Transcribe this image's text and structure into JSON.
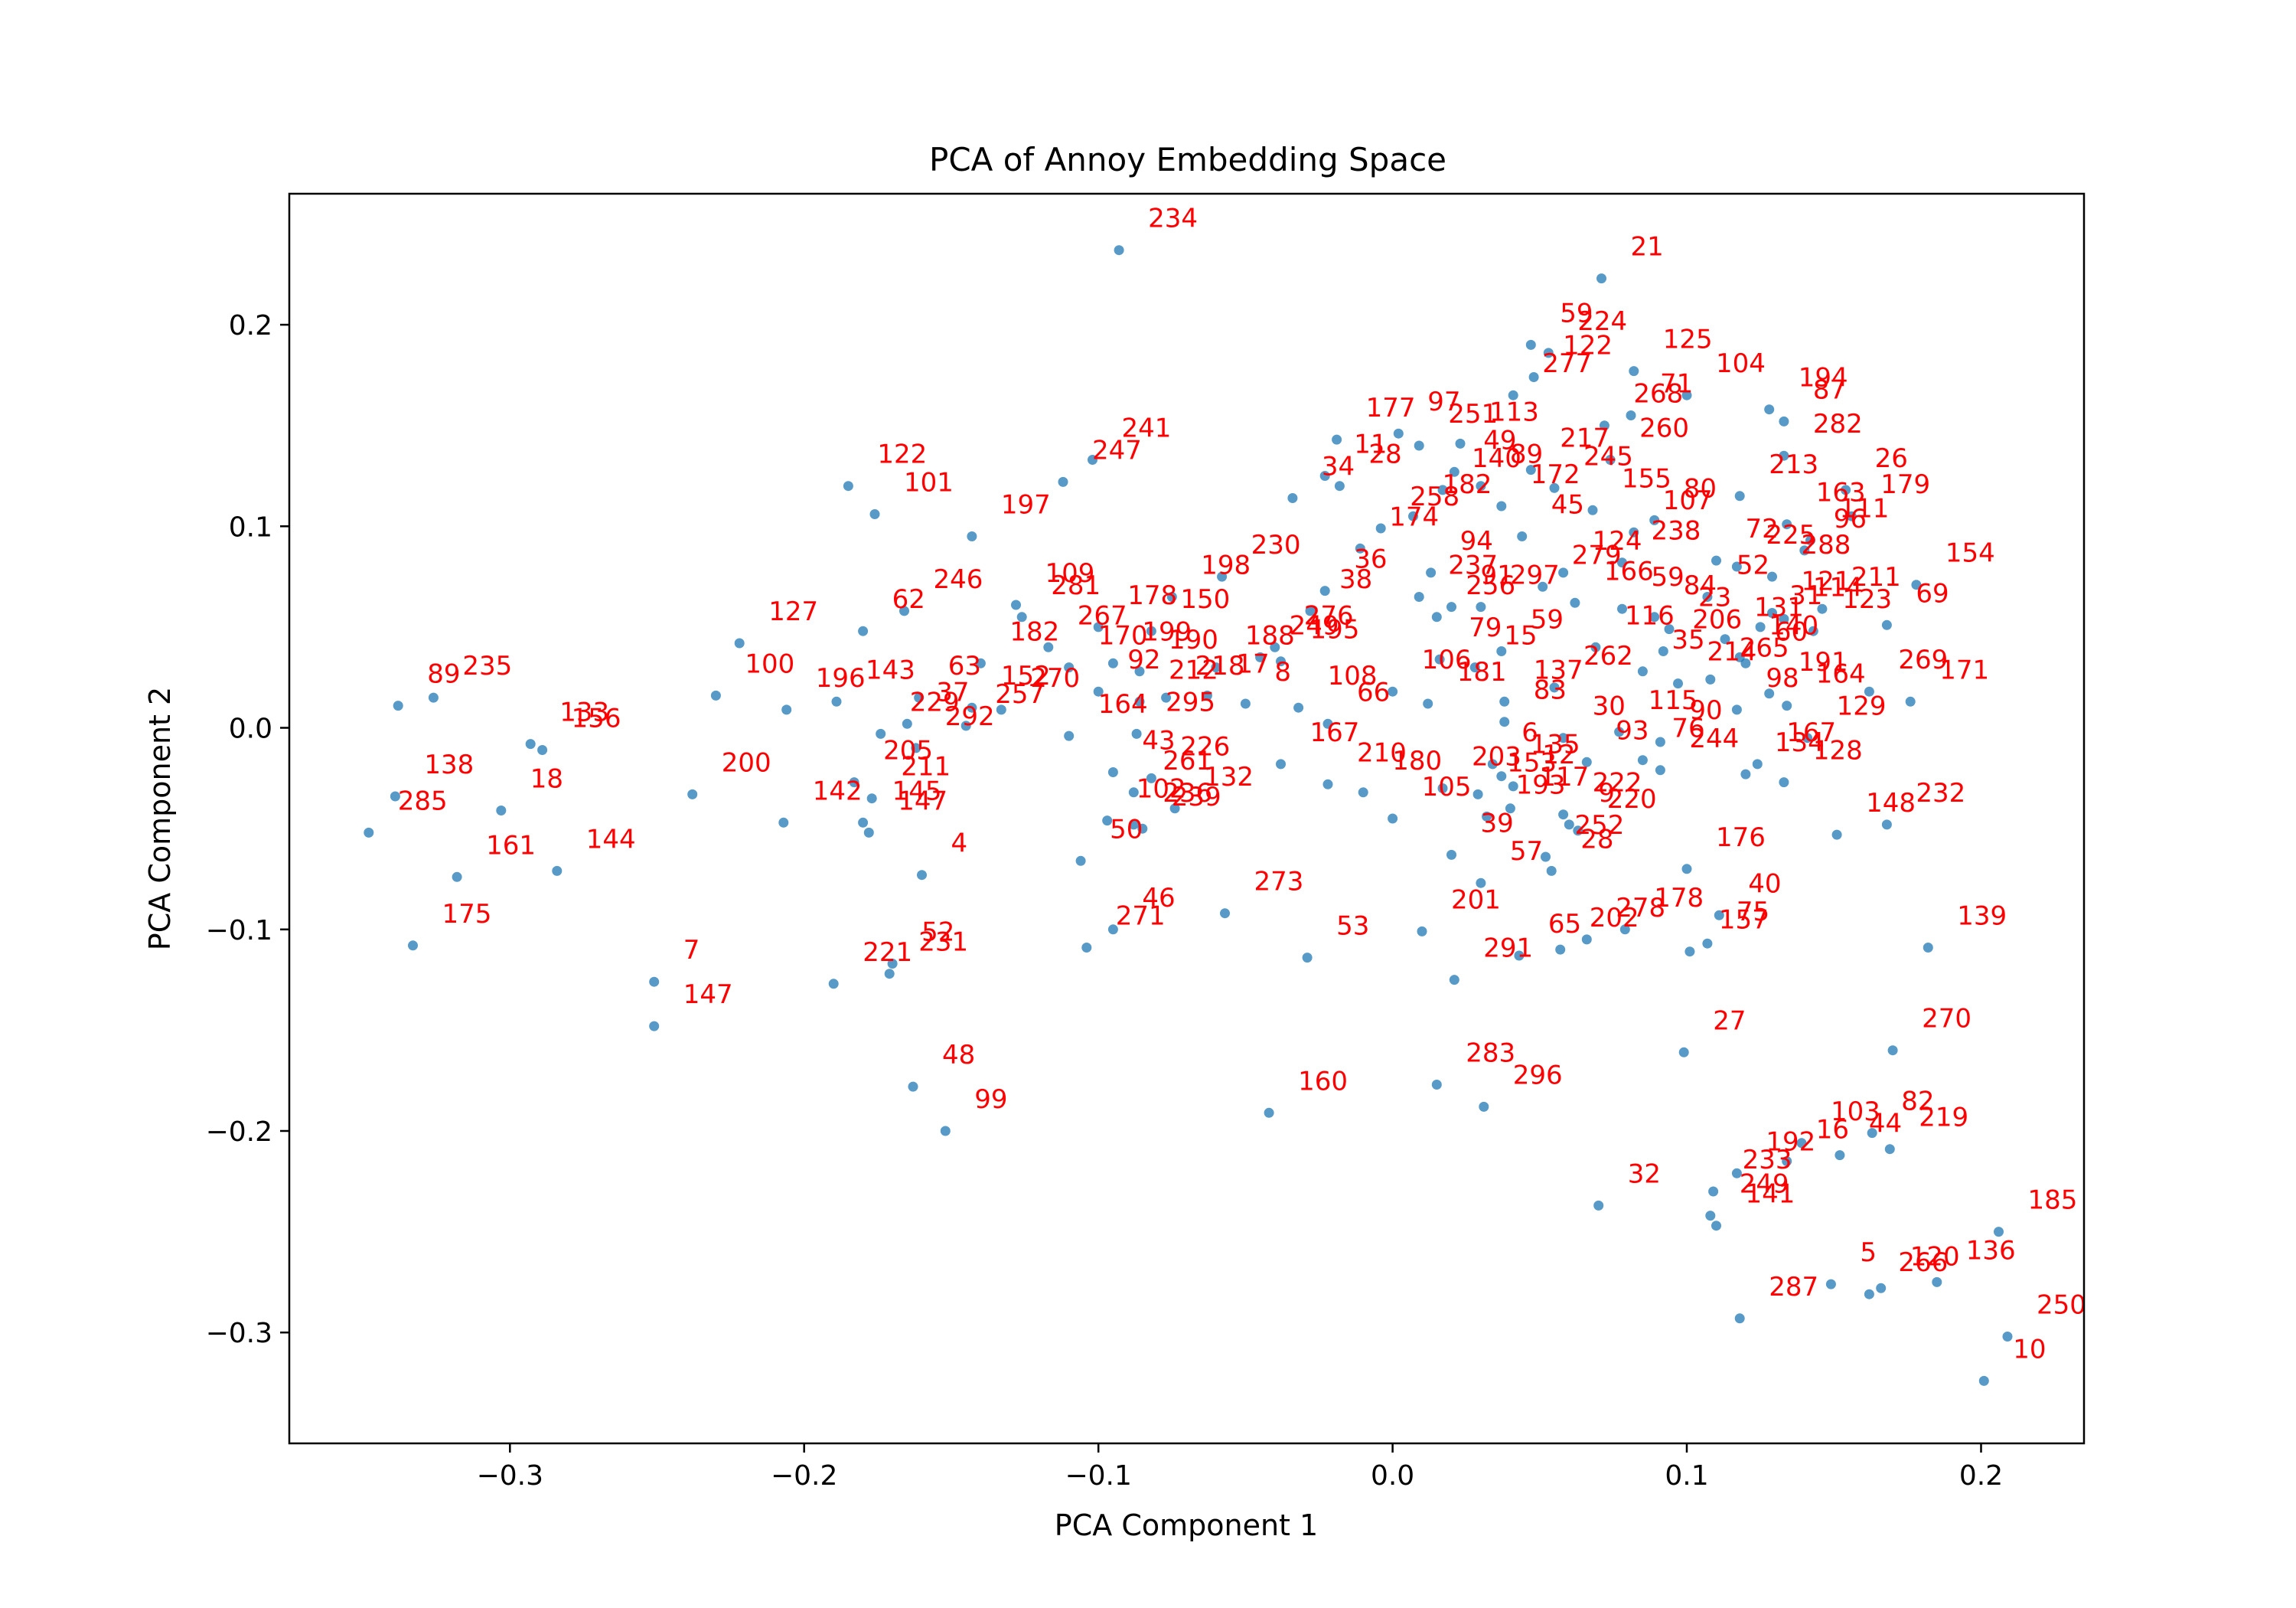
{
  "colors": {
    "points": "#1f77b4",
    "labels": "#ff0000",
    "axes": "#000000",
    "background": "#ffffff"
  },
  "chart_data": {
    "type": "scatter",
    "title": "PCA of Annoy Embedding Space",
    "xlabel": "PCA Component 1",
    "ylabel": "PCA Component 2",
    "xlim": [
      -0.375,
      0.235
    ],
    "ylim": [
      -0.355,
      0.265
    ],
    "xticks": [
      {
        "value": -0.3,
        "label": "−0.3"
      },
      {
        "value": -0.2,
        "label": "−0.2"
      },
      {
        "value": -0.1,
        "label": "−0.1"
      },
      {
        "value": 0.0,
        "label": "0.0"
      },
      {
        "value": 0.1,
        "label": "0.1"
      },
      {
        "value": 0.2,
        "label": "0.2"
      }
    ],
    "yticks": [
      {
        "value": 0.2,
        "label": "0.2"
      },
      {
        "value": 0.1,
        "label": "0.1"
      },
      {
        "value": 0.0,
        "label": "0.0"
      },
      {
        "value": -0.1,
        "label": "−0.1"
      },
      {
        "value": -0.2,
        "label": "−0.2"
      },
      {
        "value": -0.3,
        "label": "−0.3"
      }
    ],
    "grid": false,
    "legend": false,
    "points": [
      {
        "label": "234",
        "x": -0.093,
        "y": 0.237
      },
      {
        "label": "21",
        "x": 0.071,
        "y": 0.223
      },
      {
        "label": "224",
        "x": 0.053,
        "y": 0.186
      },
      {
        "label": "59",
        "x": 0.047,
        "y": 0.19
      },
      {
        "label": "125",
        "x": 0.082,
        "y": 0.177
      },
      {
        "label": "104",
        "x": 0.1,
        "y": 0.165
      },
      {
        "label": "194",
        "x": 0.128,
        "y": 0.158
      },
      {
        "label": "87",
        "x": 0.133,
        "y": 0.152
      },
      {
        "label": "282",
        "x": 0.133,
        "y": 0.135
      },
      {
        "label": "71",
        "x": 0.081,
        "y": 0.155
      },
      {
        "label": "268",
        "x": 0.072,
        "y": 0.15
      },
      {
        "label": "97",
        "x": 0.002,
        "y": 0.146
      },
      {
        "label": "251",
        "x": 0.009,
        "y": 0.14
      },
      {
        "label": "177",
        "x": -0.019,
        "y": 0.143
      },
      {
        "label": "113",
        "x": 0.023,
        "y": 0.141
      },
      {
        "label": "277",
        "x": 0.041,
        "y": 0.165
      },
      {
        "label": "122",
        "x": 0.048,
        "y": 0.174
      },
      {
        "label": "241",
        "x": -0.102,
        "y": 0.133
      },
      {
        "label": "247",
        "x": -0.112,
        "y": 0.122
      },
      {
        "label": "122",
        "x": -0.185,
        "y": 0.12
      },
      {
        "label": "101",
        "x": -0.176,
        "y": 0.106
      },
      {
        "label": "197",
        "x": -0.143,
        "y": 0.095
      },
      {
        "label": "11",
        "x": -0.023,
        "y": 0.125
      },
      {
        "label": "28",
        "x": -0.018,
        "y": 0.12
      },
      {
        "label": "34",
        "x": -0.034,
        "y": 0.114
      },
      {
        "label": "49",
        "x": 0.021,
        "y": 0.127
      },
      {
        "label": "140",
        "x": 0.017,
        "y": 0.118
      },
      {
        "label": "89",
        "x": 0.03,
        "y": 0.12
      },
      {
        "label": "217",
        "x": 0.047,
        "y": 0.128
      },
      {
        "label": "245",
        "x": 0.055,
        "y": 0.119
      },
      {
        "label": "260",
        "x": 0.074,
        "y": 0.133
      },
      {
        "label": "213",
        "x": 0.118,
        "y": 0.115
      },
      {
        "label": "26",
        "x": 0.154,
        "y": 0.118
      },
      {
        "label": "179",
        "x": 0.156,
        "y": 0.105
      },
      {
        "label": "163",
        "x": 0.134,
        "y": 0.101
      },
      {
        "label": "155",
        "x": 0.068,
        "y": 0.108
      },
      {
        "label": "80",
        "x": 0.089,
        "y": 0.103
      },
      {
        "label": "107",
        "x": 0.082,
        "y": 0.097
      },
      {
        "label": "172",
        "x": 0.037,
        "y": 0.11
      },
      {
        "label": "182",
        "x": 0.007,
        "y": 0.105
      },
      {
        "label": "258",
        "x": -0.004,
        "y": 0.099
      },
      {
        "label": "45",
        "x": 0.044,
        "y": 0.095
      },
      {
        "label": "174",
        "x": -0.011,
        "y": 0.089
      },
      {
        "label": "111",
        "x": 0.142,
        "y": 0.093
      },
      {
        "label": "96",
        "x": 0.14,
        "y": 0.088
      },
      {
        "label": "154",
        "x": 0.178,
        "y": 0.071
      },
      {
        "label": "230",
        "x": -0.058,
        "y": 0.075
      },
      {
        "label": "94",
        "x": 0.013,
        "y": 0.077
      },
      {
        "label": "36",
        "x": -0.023,
        "y": 0.068
      },
      {
        "label": "38",
        "x": -0.028,
        "y": 0.058
      },
      {
        "label": "237",
        "x": 0.009,
        "y": 0.065
      },
      {
        "label": "91",
        "x": 0.02,
        "y": 0.06
      },
      {
        "label": "279",
        "x": 0.051,
        "y": 0.07
      },
      {
        "label": "124",
        "x": 0.058,
        "y": 0.077
      },
      {
        "label": "238",
        "x": 0.078,
        "y": 0.082
      },
      {
        "label": "211",
        "x": 0.146,
        "y": 0.059
      },
      {
        "label": "69",
        "x": 0.168,
        "y": 0.051
      },
      {
        "label": "246",
        "x": -0.166,
        "y": 0.058
      },
      {
        "label": "62",
        "x": -0.18,
        "y": 0.048
      },
      {
        "label": "109",
        "x": -0.128,
        "y": 0.061
      },
      {
        "label": "281",
        "x": -0.126,
        "y": 0.055
      },
      {
        "label": "178",
        "x": -0.1,
        "y": 0.05
      },
      {
        "label": "150",
        "x": -0.082,
        "y": 0.048
      },
      {
        "label": "198",
        "x": -0.075,
        "y": 0.065
      },
      {
        "label": "267",
        "x": -0.117,
        "y": 0.04
      },
      {
        "label": "256",
        "x": 0.015,
        "y": 0.055
      },
      {
        "label": "297",
        "x": 0.03,
        "y": 0.06
      },
      {
        "label": "166",
        "x": 0.062,
        "y": 0.062
      },
      {
        "label": "59",
        "x": 0.078,
        "y": 0.059
      },
      {
        "label": "276",
        "x": -0.04,
        "y": 0.04
      },
      {
        "label": "116",
        "x": 0.069,
        "y": 0.04
      },
      {
        "label": "206",
        "x": 0.092,
        "y": 0.038
      },
      {
        "label": "123",
        "x": 0.143,
        "y": 0.048
      },
      {
        "label": "127",
        "x": -0.222,
        "y": 0.042
      },
      {
        "label": "182",
        "x": -0.14,
        "y": 0.032
      },
      {
        "label": "170",
        "x": -0.11,
        "y": 0.03
      },
      {
        "label": "199",
        "x": -0.095,
        "y": 0.032
      },
      {
        "label": "190",
        "x": -0.086,
        "y": 0.028
      },
      {
        "label": "188",
        "x": -0.06,
        "y": 0.03
      },
      {
        "label": "249",
        "x": -0.045,
        "y": 0.035
      },
      {
        "label": "195",
        "x": -0.038,
        "y": 0.033
      },
      {
        "label": "79",
        "x": 0.016,
        "y": 0.034
      },
      {
        "label": "15",
        "x": 0.028,
        "y": 0.03
      },
      {
        "label": "59",
        "x": 0.037,
        "y": 0.038
      },
      {
        "label": "60",
        "x": 0.12,
        "y": 0.032
      },
      {
        "label": "235",
        "x": -0.326,
        "y": 0.015
      },
      {
        "label": "89",
        "x": -0.338,
        "y": 0.011
      },
      {
        "label": "133",
        "x": -0.293,
        "y": -0.008
      },
      {
        "label": "156",
        "x": -0.289,
        "y": -0.011
      },
      {
        "label": "100",
        "x": -0.23,
        "y": 0.016
      },
      {
        "label": "143",
        "x": -0.189,
        "y": 0.013
      },
      {
        "label": "196",
        "x": -0.206,
        "y": 0.009
      },
      {
        "label": "63",
        "x": -0.161,
        "y": 0.015
      },
      {
        "label": "37",
        "x": -0.165,
        "y": 0.002
      },
      {
        "label": "152",
        "x": -0.143,
        "y": 0.01
      },
      {
        "label": "270",
        "x": -0.133,
        "y": 0.009
      },
      {
        "label": "92",
        "x": -0.1,
        "y": 0.018
      },
      {
        "label": "218",
        "x": -0.077,
        "y": 0.015
      },
      {
        "label": "108",
        "x": -0.032,
        "y": 0.01
      },
      {
        "label": "106",
        "x": 0.0,
        "y": 0.018
      },
      {
        "label": "181",
        "x": 0.012,
        "y": 0.012
      },
      {
        "label": "137",
        "x": 0.038,
        "y": 0.013
      },
      {
        "label": "262",
        "x": 0.055,
        "y": 0.02
      },
      {
        "label": "269",
        "x": 0.162,
        "y": 0.018
      },
      {
        "label": "171",
        "x": 0.176,
        "y": 0.013
      },
      {
        "label": "229",
        "x": -0.174,
        "y": -0.003
      },
      {
        "label": "292",
        "x": -0.162,
        "y": -0.01
      },
      {
        "label": "257",
        "x": -0.145,
        "y": 0.001
      },
      {
        "label": "164",
        "x": -0.11,
        "y": -0.004
      },
      {
        "label": "295",
        "x": -0.087,
        "y": -0.003
      },
      {
        "label": "66",
        "x": -0.022,
        "y": 0.002
      },
      {
        "label": "83",
        "x": 0.038,
        "y": 0.003
      },
      {
        "label": "30",
        "x": 0.058,
        "y": -0.005
      },
      {
        "label": "115",
        "x": 0.077,
        "y": -0.002
      },
      {
        "label": "90",
        "x": 0.091,
        "y": -0.007
      },
      {
        "label": "129",
        "x": 0.141,
        "y": -0.005
      },
      {
        "label": "200",
        "x": -0.238,
        "y": -0.033
      },
      {
        "label": "205",
        "x": -0.183,
        "y": -0.027
      },
      {
        "label": "211",
        "x": -0.177,
        "y": -0.035
      },
      {
        "label": "43",
        "x": -0.095,
        "y": -0.022
      },
      {
        "label": "226",
        "x": -0.082,
        "y": -0.025
      },
      {
        "label": "167",
        "x": -0.038,
        "y": -0.018
      },
      {
        "label": "210",
        "x": -0.022,
        "y": -0.028
      },
      {
        "label": "180",
        "x": -0.01,
        "y": -0.032
      },
      {
        "label": "6",
        "x": 0.034,
        "y": -0.018
      },
      {
        "label": "135",
        "x": 0.037,
        "y": -0.024
      },
      {
        "label": "93",
        "x": 0.066,
        "y": -0.017
      },
      {
        "label": "76",
        "x": 0.085,
        "y": -0.016
      },
      {
        "label": "244",
        "x": 0.091,
        "y": -0.021
      },
      {
        "label": "134",
        "x": 0.12,
        "y": -0.023
      },
      {
        "label": "138",
        "x": -0.339,
        "y": -0.034
      },
      {
        "label": "18",
        "x": -0.303,
        "y": -0.041
      },
      {
        "label": "285",
        "x": -0.348,
        "y": -0.052
      },
      {
        "label": "142",
        "x": -0.207,
        "y": -0.047
      },
      {
        "label": "145",
        "x": -0.18,
        "y": -0.047
      },
      {
        "label": "147",
        "x": -0.178,
        "y": -0.052
      },
      {
        "label": "102",
        "x": -0.097,
        "y": -0.046
      },
      {
        "label": "236",
        "x": -0.088,
        "y": -0.048
      },
      {
        "label": "239",
        "x": -0.085,
        "y": -0.05
      },
      {
        "label": "105",
        "x": 0.0,
        "y": -0.045
      },
      {
        "label": "193",
        "x": 0.032,
        "y": -0.044
      },
      {
        "label": "222",
        "x": 0.058,
        "y": -0.043
      },
      {
        "label": "9",
        "x": 0.06,
        "y": -0.048
      },
      {
        "label": "220",
        "x": 0.063,
        "y": -0.051
      },
      {
        "label": "232",
        "x": 0.168,
        "y": -0.048
      },
      {
        "label": "148",
        "x": 0.151,
        "y": -0.053
      },
      {
        "label": "161",
        "x": -0.318,
        "y": -0.074
      },
      {
        "label": "144",
        "x": -0.284,
        "y": -0.071
      },
      {
        "label": "4",
        "x": -0.16,
        "y": -0.073
      },
      {
        "label": "50",
        "x": -0.106,
        "y": -0.066
      },
      {
        "label": "39",
        "x": 0.02,
        "y": -0.063
      },
      {
        "label": "252",
        "x": 0.052,
        "y": -0.064
      },
      {
        "label": "28",
        "x": 0.054,
        "y": -0.071
      },
      {
        "label": "57",
        "x": 0.03,
        "y": -0.077
      },
      {
        "label": "176",
        "x": 0.1,
        "y": -0.07
      },
      {
        "label": "273",
        "x": -0.057,
        "y": -0.092
      },
      {
        "label": "40",
        "x": 0.111,
        "y": -0.093
      },
      {
        "label": "175",
        "x": -0.333,
        "y": -0.108
      },
      {
        "label": "46",
        "x": -0.095,
        "y": -0.1
      },
      {
        "label": "271",
        "x": -0.104,
        "y": -0.109
      },
      {
        "label": "201",
        "x": 0.01,
        "y": -0.101
      },
      {
        "label": "202",
        "x": 0.057,
        "y": -0.11
      },
      {
        "label": "278",
        "x": 0.066,
        "y": -0.105
      },
      {
        "label": "178",
        "x": 0.079,
        "y": -0.1
      },
      {
        "label": "75",
        "x": 0.107,
        "y": -0.107
      },
      {
        "label": "157",
        "x": 0.101,
        "y": -0.111
      },
      {
        "label": "139",
        "x": 0.182,
        "y": -0.109
      },
      {
        "label": "7",
        "x": -0.251,
        "y": -0.126
      },
      {
        "label": "147",
        "x": -0.251,
        "y": -0.148
      },
      {
        "label": "52",
        "x": -0.17,
        "y": -0.117
      },
      {
        "label": "231",
        "x": -0.171,
        "y": -0.122
      },
      {
        "label": "221",
        "x": -0.19,
        "y": -0.127
      },
      {
        "label": "53",
        "x": -0.029,
        "y": -0.114
      },
      {
        "label": "65",
        "x": 0.043,
        "y": -0.113
      },
      {
        "label": "291",
        "x": 0.021,
        "y": -0.125
      },
      {
        "label": "270",
        "x": 0.17,
        "y": -0.16
      },
      {
        "label": "27",
        "x": 0.099,
        "y": -0.161
      },
      {
        "label": "48",
        "x": -0.163,
        "y": -0.178
      },
      {
        "label": "99",
        "x": -0.152,
        "y": -0.2
      },
      {
        "label": "160",
        "x": -0.042,
        "y": -0.191
      },
      {
        "label": "283",
        "x": 0.015,
        "y": -0.177
      },
      {
        "label": "296",
        "x": 0.031,
        "y": -0.188
      },
      {
        "label": "103",
        "x": 0.139,
        "y": -0.206
      },
      {
        "label": "16",
        "x": 0.134,
        "y": -0.215
      },
      {
        "label": "82",
        "x": 0.163,
        "y": -0.201
      },
      {
        "label": "44",
        "x": 0.152,
        "y": -0.212
      },
      {
        "label": "219",
        "x": 0.169,
        "y": -0.209
      },
      {
        "label": "192",
        "x": 0.117,
        "y": -0.221
      },
      {
        "label": "233",
        "x": 0.109,
        "y": -0.23
      },
      {
        "label": "32",
        "x": 0.07,
        "y": -0.237
      },
      {
        "label": "249",
        "x": 0.108,
        "y": -0.242
      },
      {
        "label": "141",
        "x": 0.11,
        "y": -0.247
      },
      {
        "label": "185",
        "x": 0.206,
        "y": -0.25
      },
      {
        "label": "5",
        "x": 0.149,
        "y": -0.276
      },
      {
        "label": "266",
        "x": 0.162,
        "y": -0.281
      },
      {
        "label": "120",
        "x": 0.166,
        "y": -0.278
      },
      {
        "label": "136",
        "x": 0.185,
        "y": -0.275
      },
      {
        "label": "287",
        "x": 0.118,
        "y": -0.293
      },
      {
        "label": "250",
        "x": 0.209,
        "y": -0.302
      },
      {
        "label": "10",
        "x": 0.201,
        "y": -0.324
      },
      {
        "label": "8",
        "x": -0.05,
        "y": 0.012
      },
      {
        "label": "121",
        "x": 0.129,
        "y": 0.057
      },
      {
        "label": "114",
        "x": 0.133,
        "y": 0.054
      },
      {
        "label": "31",
        "x": 0.125,
        "y": 0.05
      },
      {
        "label": "131",
        "x": 0.113,
        "y": 0.044
      },
      {
        "label": "140",
        "x": 0.118,
        "y": 0.035
      },
      {
        "label": "72",
        "x": 0.11,
        "y": 0.083
      },
      {
        "label": "225",
        "x": 0.117,
        "y": 0.08
      },
      {
        "label": "288",
        "x": 0.129,
        "y": 0.075
      },
      {
        "label": "52",
        "x": 0.107,
        "y": 0.065
      },
      {
        "label": "84",
        "x": 0.089,
        "y": 0.055
      },
      {
        "label": "23",
        "x": 0.094,
        "y": 0.049
      },
      {
        "label": "265",
        "x": 0.108,
        "y": 0.024
      },
      {
        "label": "191",
        "x": 0.128,
        "y": 0.017
      },
      {
        "label": "164",
        "x": 0.134,
        "y": 0.011
      },
      {
        "label": "98",
        "x": 0.117,
        "y": 0.009
      },
      {
        "label": "128",
        "x": 0.133,
        "y": -0.027
      },
      {
        "label": "167",
        "x": 0.124,
        "y": -0.018
      },
      {
        "label": "214",
        "x": 0.097,
        "y": 0.022
      },
      {
        "label": "35",
        "x": 0.085,
        "y": 0.028
      },
      {
        "label": "212",
        "x": -0.086,
        "y": 0.013
      },
      {
        "label": "12",
        "x": 0.041,
        "y": -0.029
      },
      {
        "label": "153",
        "x": 0.029,
        "y": -0.033
      },
      {
        "label": "117",
        "x": 0.04,
        "y": -0.04
      },
      {
        "label": "203",
        "x": 0.017,
        "y": -0.03
      },
      {
        "label": "132",
        "x": -0.074,
        "y": -0.04
      },
      {
        "label": "261",
        "x": -0.088,
        "y": -0.032
      },
      {
        "label": "17",
        "x": -0.063,
        "y": 0.016
      }
    ]
  }
}
